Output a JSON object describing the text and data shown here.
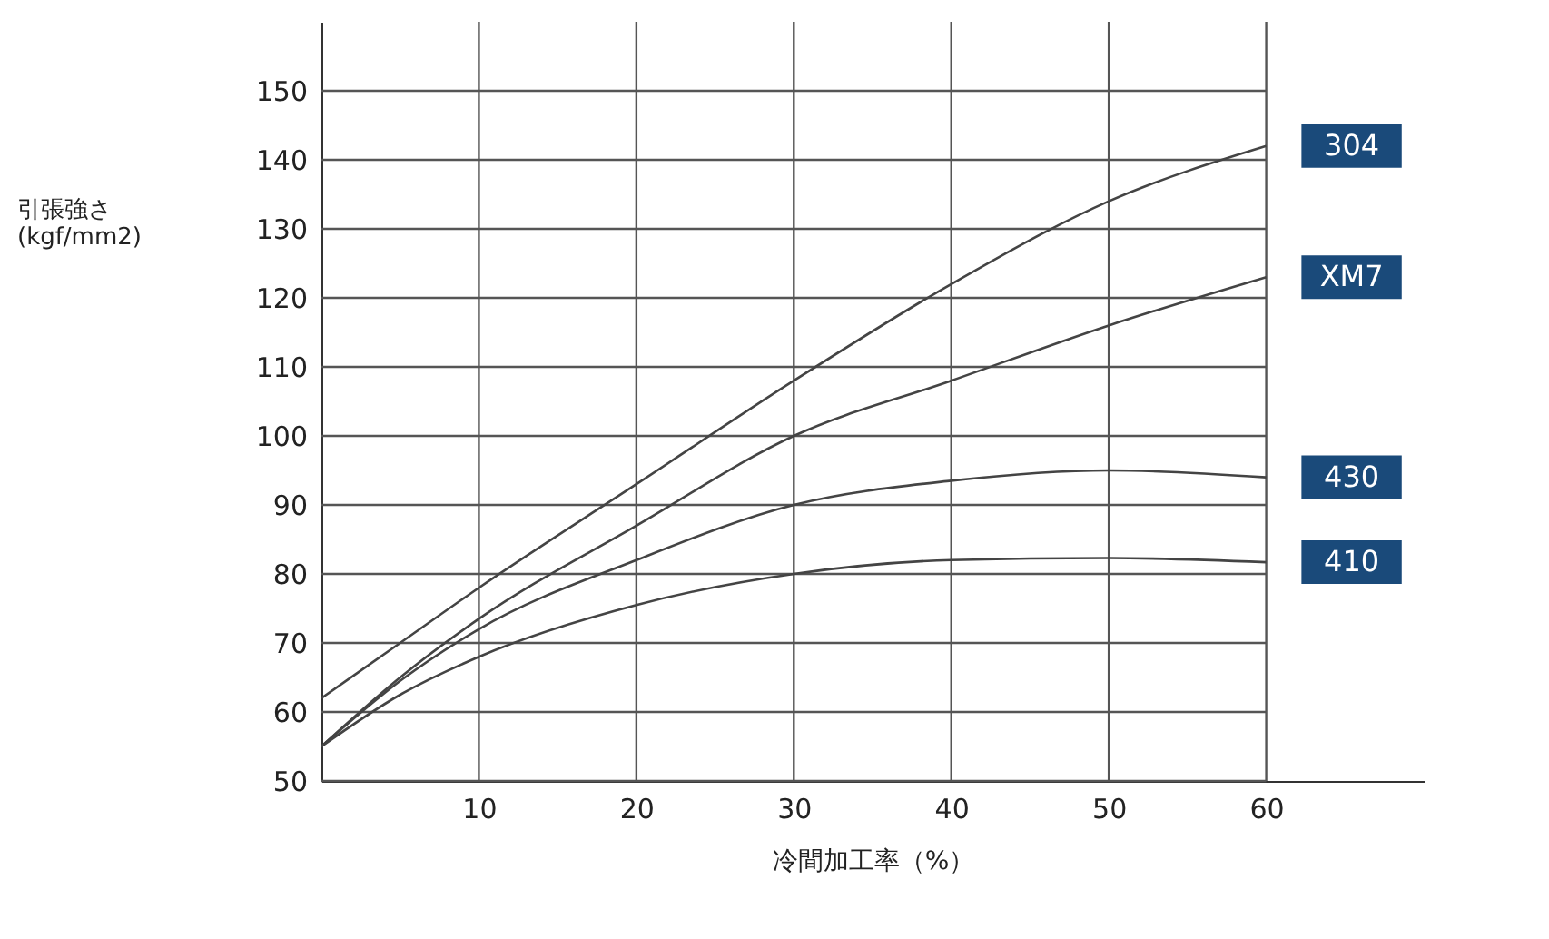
{
  "chart_data": {
    "type": "line",
    "xlabel": "冷間加工率（%）",
    "ylabel": "引張強さ (kgf/mm2)",
    "x": [
      0,
      5,
      10,
      20,
      30,
      40,
      50,
      60
    ],
    "series": [
      {
        "name": "304",
        "color": "#444444",
        "values": [
          62,
          70,
          78,
          93,
          108,
          122,
          134,
          142
        ]
      },
      {
        "name": "XM7",
        "color": "#444444",
        "values": [
          55,
          65,
          73.5,
          87,
          100,
          108,
          116,
          123
        ]
      },
      {
        "name": "430",
        "color": "#444444",
        "values": [
          55,
          64.5,
          72,
          82,
          90,
          93.5,
          95,
          94
        ]
      },
      {
        "name": "410",
        "color": "#444444",
        "values": [
          55,
          62.5,
          68,
          75.5,
          80,
          82,
          82.3,
          81.7
        ]
      }
    ],
    "xlim": [
      0,
      70
    ],
    "xticks": [
      10,
      20,
      30,
      40,
      50,
      60
    ],
    "ylim": [
      50,
      160
    ],
    "yticks": [
      50,
      60,
      70,
      80,
      90,
      100,
      110,
      120,
      130,
      140,
      150
    ],
    "grid": true,
    "marker": "none",
    "line_style": "solid"
  }
}
